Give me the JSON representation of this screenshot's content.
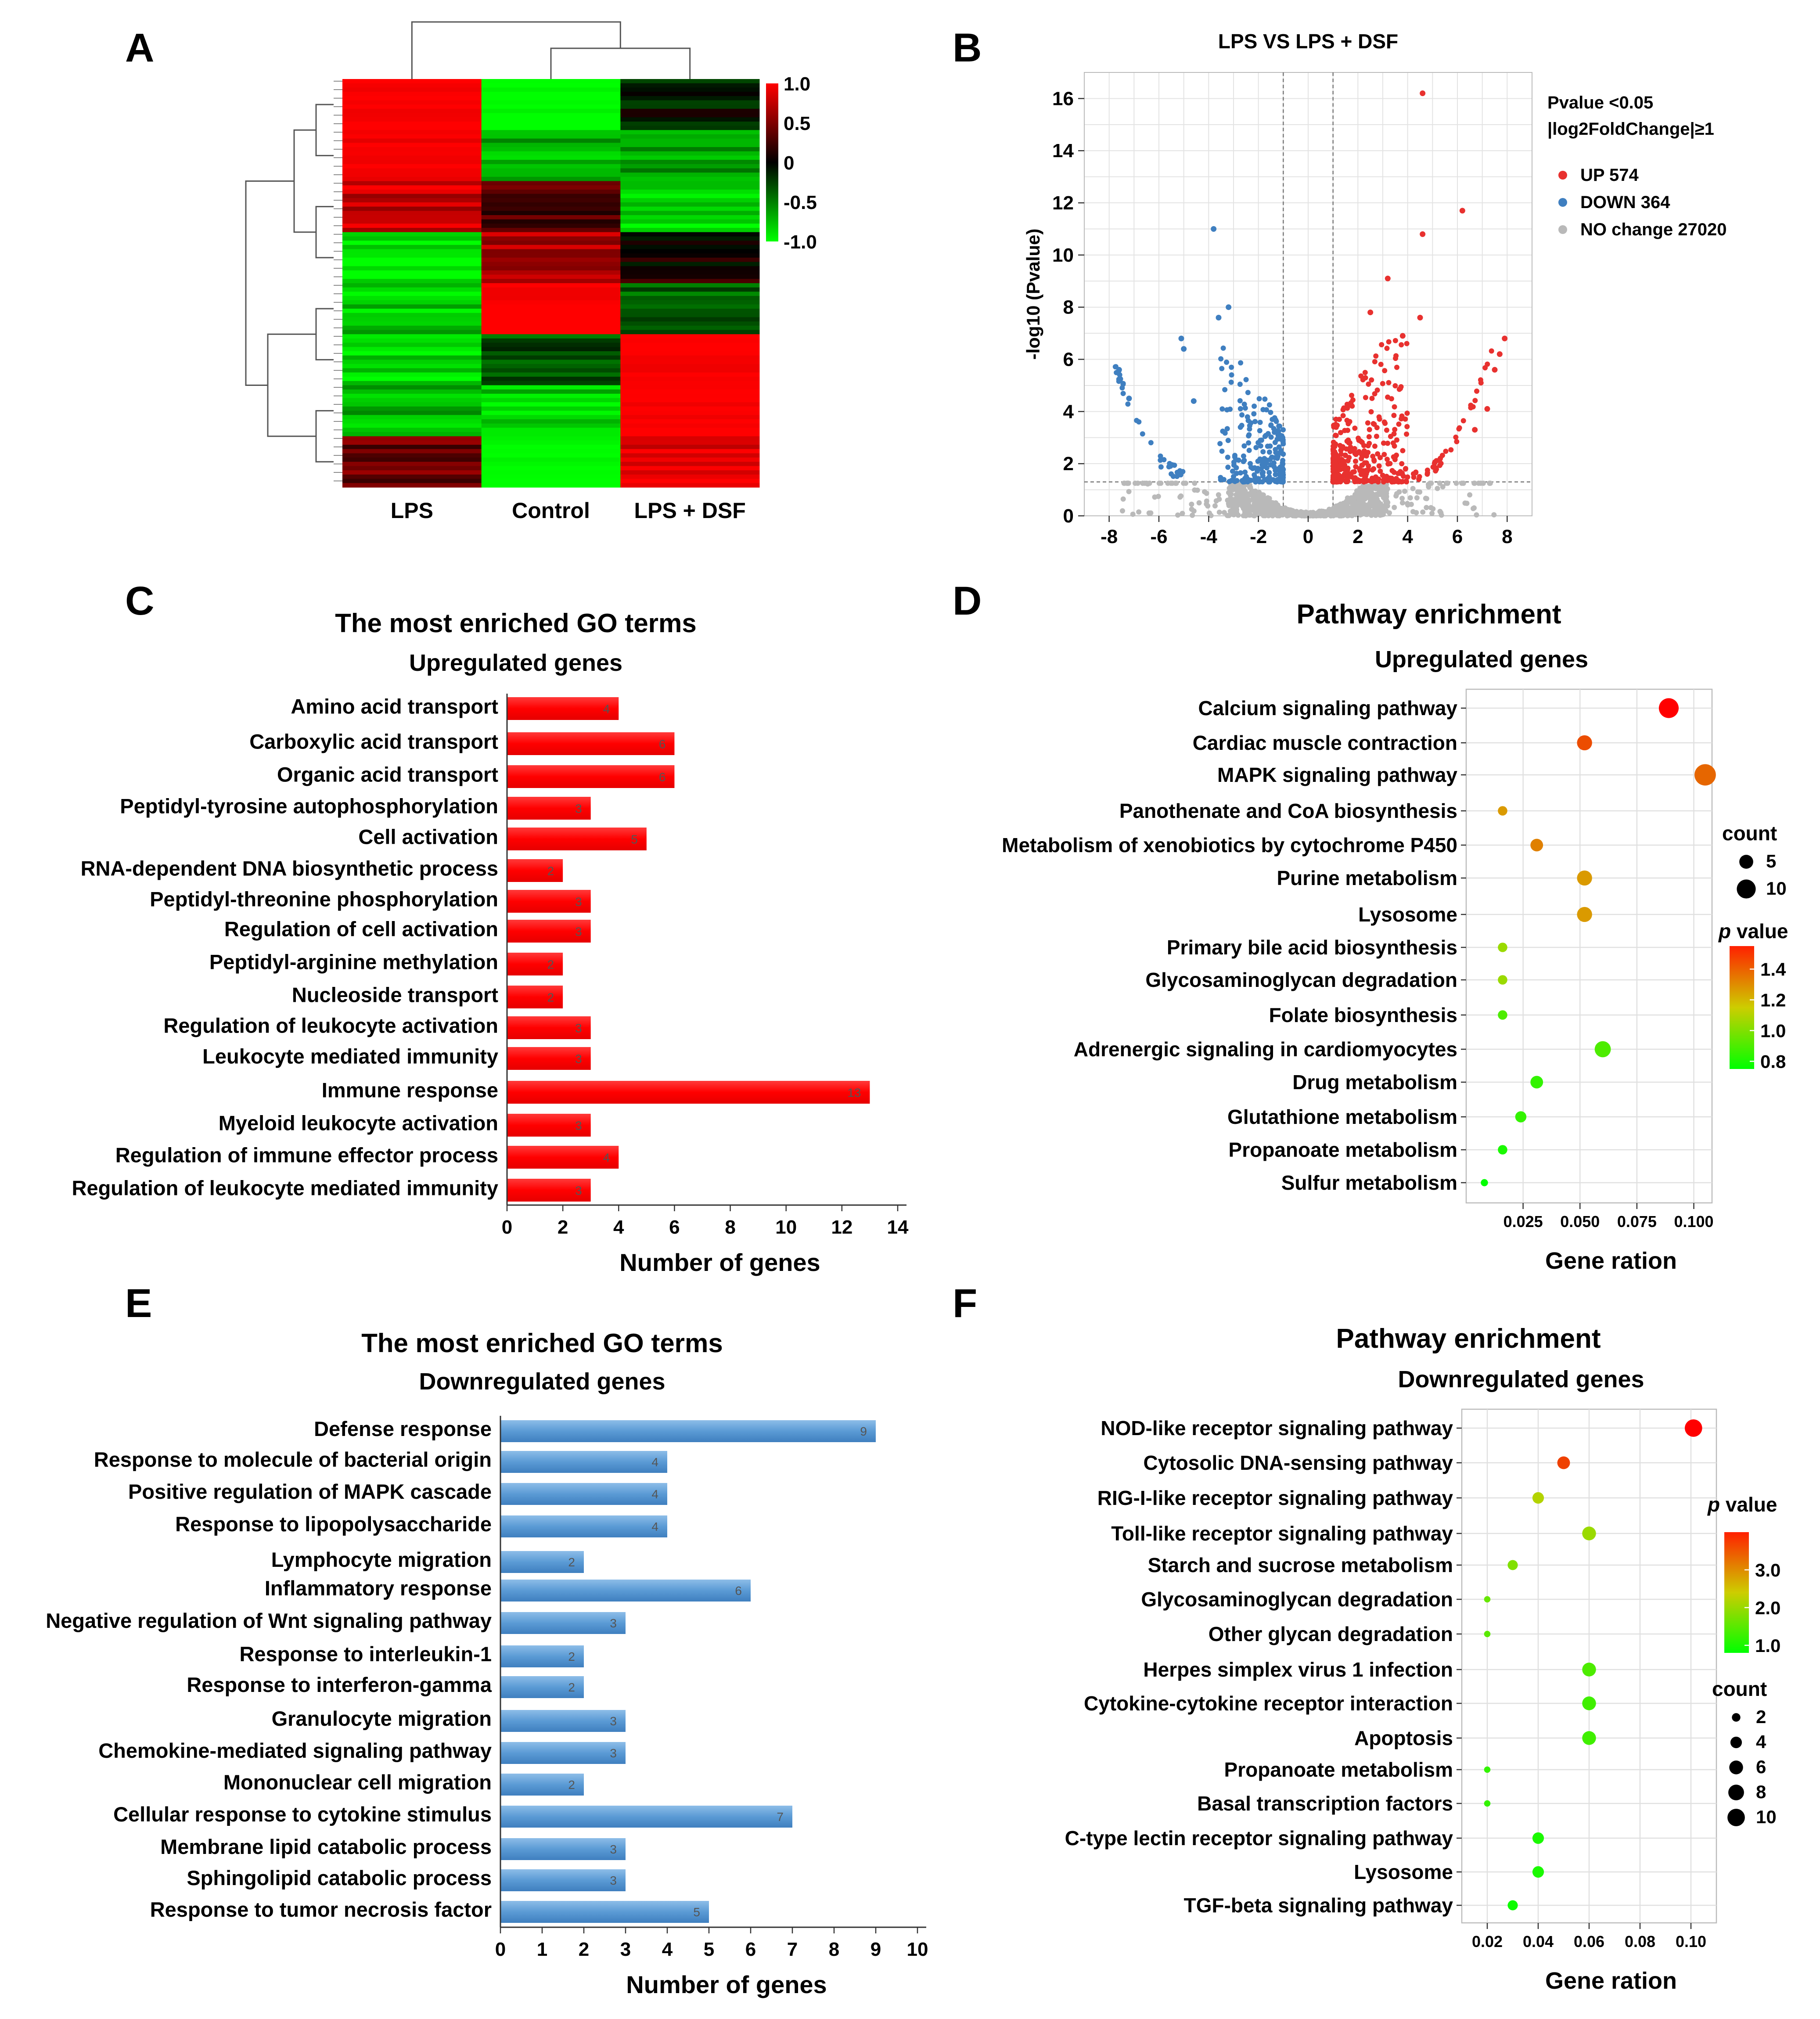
{
  "panels": {
    "A": {
      "letter": "A"
    },
    "B": {
      "letter": "B"
    },
    "C": {
      "letter": "C"
    },
    "D": {
      "letter": "D"
    },
    "E": {
      "letter": "E"
    },
    "F": {
      "letter": "F"
    }
  },
  "chart_data": [
    {
      "panel": "A",
      "type": "heatmap",
      "columns": [
        "LPS",
        "Control",
        "LPS + DSF"
      ],
      "colorbar": {
        "ticks": [
          "1.0",
          "0.5",
          "0",
          "-0.5",
          "-1.0"
        ],
        "range": [
          -1.0,
          1.0
        ],
        "high_color": "#ff0000",
        "mid_color": "#000000",
        "low_color": "#00ff00"
      },
      "row_blocks": [
        {
          "values": [
            1.0,
            -1.0,
            -0.1
          ]
        },
        {
          "values": [
            0.95,
            -0.7,
            -0.6
          ]
        },
        {
          "values": [
            0.8,
            0.3,
            -0.9
          ]
        },
        {
          "values": [
            -0.9,
            0.7,
            0.1
          ]
        },
        {
          "values": [
            -0.8,
            1.0,
            -0.4
          ]
        },
        {
          "values": [
            -0.9,
            -0.3,
            1.0
          ]
        },
        {
          "values": [
            -0.7,
            -0.8,
            1.0
          ]
        },
        {
          "values": [
            0.4,
            -1.0,
            0.9
          ]
        }
      ]
    },
    {
      "panel": "B",
      "type": "scatter",
      "title": "LPS VS LPS + DSF",
      "ylabel": "-log10 (Pvalue)",
      "xlim": [
        -9,
        9
      ],
      "ylim": [
        0,
        17
      ],
      "xticks": [
        "-8",
        "-6",
        "-4",
        "-2",
        "0",
        "2",
        "4",
        "6",
        "8"
      ],
      "yticks": [
        "0",
        "2",
        "4",
        "6",
        "8",
        "10",
        "12",
        "14",
        "16"
      ],
      "thresholds": {
        "log2fc": 1,
        "neglog10p": 1.3
      },
      "legend_header": [
        "Pvalue <0.05",
        "|log2FoldChange|≥1"
      ],
      "legend": [
        {
          "label": "UP 574",
          "color": "#e8312f"
        },
        {
          "label": "DOWN 364",
          "color": "#3f7fc0"
        },
        {
          "label": "NO change 27020",
          "color": "#b9b9b9"
        }
      ],
      "highlight_points": {
        "up": [
          [
            4.6,
            16.2
          ],
          [
            6.2,
            11.7
          ],
          [
            4.6,
            10.8
          ],
          [
            3.2,
            9.1
          ],
          [
            7.9,
            6.8
          ],
          [
            7.7,
            6.2
          ],
          [
            7.5,
            5.6
          ],
          [
            7.2,
            4.1
          ],
          [
            6.7,
            3.3
          ],
          [
            4.5,
            7.6
          ],
          [
            3.8,
            6.9
          ],
          [
            2.5,
            7.8
          ]
        ],
        "down": [
          [
            -3.8,
            11.0
          ],
          [
            -3.2,
            8.0
          ],
          [
            -3.6,
            7.6
          ],
          [
            -5.1,
            6.8
          ],
          [
            -5.0,
            6.4
          ],
          [
            -7.6,
            5.6
          ],
          [
            -7.2,
            4.5
          ],
          [
            -4.6,
            4.4
          ]
        ]
      }
    },
    {
      "panel": "C",
      "type": "bar",
      "orientation": "horizontal",
      "title": "The most enriched GO terms",
      "subtitle": "Upregulated genes",
      "xlabel": "Number of genes",
      "xlim": [
        0,
        14
      ],
      "xticks": [
        "0",
        "2",
        "4",
        "6",
        "8",
        "10",
        "12",
        "14"
      ],
      "color": "#ff0000",
      "categories": [
        "Amino acid transport",
        "Carboxylic acid transport",
        "Organic acid transport",
        "Peptidyl-tyrosine autophosphorylation",
        "Cell activation",
        "RNA-dependent DNA biosynthetic process",
        "Peptidyl-threonine phosphorylation",
        "Regulation of cell activation",
        "Peptidyl-arginine methylation",
        "Nucleoside transport",
        "Regulation of leukocyte activation",
        "Leukocyte mediated immunity",
        "Immune response",
        "Myeloid leukocyte activation",
        "Regulation of immune effector process",
        "Regulation of leukocyte mediated immunity"
      ],
      "values": [
        4,
        6,
        6,
        3,
        5,
        2,
        3,
        3,
        2,
        2,
        3,
        3,
        13,
        3,
        4,
        3
      ],
      "value_labels": [
        "4",
        "6",
        "6",
        "3",
        "5",
        "2",
        "3",
        "3",
        "2",
        "2",
        "3",
        "3",
        "13",
        "3",
        "4",
        "3"
      ]
    },
    {
      "panel": "D",
      "type": "scatter",
      "title": "Pathway enrichment",
      "subtitle": "Upregulated genes",
      "xlabel": "Gene ration",
      "xlim": [
        0.0,
        0.108
      ],
      "xticks": [
        "0.025",
        "0.050",
        "0.075",
        "0.100"
      ],
      "categories": [
        "Calcium signaling pathway",
        "Cardiac muscle contraction",
        "MAPK signaling pathway",
        "Panothenate and CoA biosynthesis",
        "Metabolism of xenobiotics by cytochrome P450",
        "Purine metabolism",
        "Lysosome",
        "Primary bile acid biosynthesis",
        "Glycosaminoglycan degradation",
        "Folate biosynthesis",
        "Adrenergic signaling in cardiomyocytes",
        "Drug metabolism",
        "Glutathione metabolism",
        "Propanoate metabolism",
        "Sulfur metabolism"
      ],
      "gene_ratio": [
        0.089,
        0.052,
        0.105,
        0.016,
        0.031,
        0.052,
        0.052,
        0.016,
        0.016,
        0.016,
        0.06,
        0.031,
        0.024,
        0.016,
        0.008
      ],
      "count": [
        11,
        6,
        13,
        2,
        4,
        6,
        6,
        2,
        2,
        2,
        7,
        4,
        3,
        2,
        1
      ],
      "p_value": [
        1.55,
        1.4,
        1.35,
        1.25,
        1.3,
        1.25,
        1.25,
        1.05,
        1.05,
        0.9,
        0.9,
        0.85,
        0.85,
        0.8,
        0.75
      ],
      "size_legend_title": "count",
      "size_legend": [
        "5",
        "10"
      ],
      "color_legend_title": "p value",
      "color_legend_ticks": [
        "1.4",
        "1.2",
        "1.0",
        "0.8"
      ],
      "color_range": [
        0.75,
        1.55
      ]
    },
    {
      "panel": "E",
      "type": "bar",
      "orientation": "horizontal",
      "title": "The most enriched GO terms",
      "subtitle": "Downregulated genes",
      "xlabel": "Number of genes",
      "xlim": [
        0,
        10
      ],
      "xticks": [
        "0",
        "1",
        "2",
        "3",
        "4",
        "5",
        "6",
        "7",
        "8",
        "9",
        "10"
      ],
      "color": "#5b9bd5",
      "categories": [
        "Defense response",
        "Response to molecule of bacterial origin",
        "Positive regulation of MAPK cascade",
        "Response to lipopolysaccharide",
        "Lymphocyte migration",
        "Inflammatory response",
        "Negative regulation of Wnt signaling pathway",
        "Response to interleukin-1",
        "Response to interferon-gamma",
        "Granulocyte migration",
        "Chemokine-mediated signaling pathway",
        "Mononuclear cell migration",
        "Cellular response to cytokine stimulus",
        "Membrane lipid catabolic process",
        "Sphingolipid catabolic process",
        "Response to tumor necrosis factor"
      ],
      "values": [
        9,
        4,
        4,
        4,
        2,
        6,
        3,
        2,
        2,
        3,
        3,
        2,
        7,
        3,
        3,
        5
      ],
      "value_labels": [
        "9",
        "4",
        "4",
        "4",
        "2",
        "6",
        "3",
        "2",
        "2",
        "3",
        "3",
        "2",
        "7",
        "3",
        "3",
        "5"
      ]
    },
    {
      "panel": "F",
      "type": "scatter",
      "title": "Pathway enrichment",
      "subtitle": "Downregulated genes",
      "xlabel": "Gene ration",
      "xlim": [
        0.01,
        0.11
      ],
      "xticks": [
        "0.02",
        "0.04",
        "0.06",
        "0.08",
        "0.10"
      ],
      "categories": [
        "NOD-like receptor signaling pathway",
        "Cytosolic DNA-sensing pathway",
        "RIG-I-like receptor signaling pathway",
        "Toll-like receptor signaling pathway",
        "Starch and sucrose metabolism",
        "Glycosaminoglycan degradation",
        "Other glycan degradation",
        "Herpes simplex virus 1 infection",
        "Cytokine-cytokine receptor interaction",
        "Apoptosis",
        "Propanoate metabolism",
        "Basal transcription factors",
        "C-type lectin receptor signaling pathway",
        "Lysosome",
        "TGF-beta signaling pathway"
      ],
      "gene_ratio": [
        0.101,
        0.05,
        0.04,
        0.06,
        0.03,
        0.02,
        0.02,
        0.06,
        0.06,
        0.06,
        0.02,
        0.02,
        0.04,
        0.04,
        0.03
      ],
      "count": [
        10,
        5,
        4,
        6,
        3,
        1,
        1,
        6,
        6,
        6,
        1,
        1,
        4,
        4,
        3
      ],
      "p_value": [
        4.0,
        3.5,
        2.2,
        2.0,
        1.8,
        1.6,
        1.5,
        1.4,
        1.3,
        1.3,
        1.2,
        1.2,
        1.0,
        1.0,
        0.9
      ],
      "size_legend_title": "count",
      "size_legend": [
        "2",
        "4",
        "6",
        "8",
        "10"
      ],
      "color_legend_title": "p value",
      "color_legend_ticks": [
        "3.0",
        "2.0",
        "1.0"
      ],
      "color_range": [
        0.8,
        4.0
      ]
    }
  ]
}
